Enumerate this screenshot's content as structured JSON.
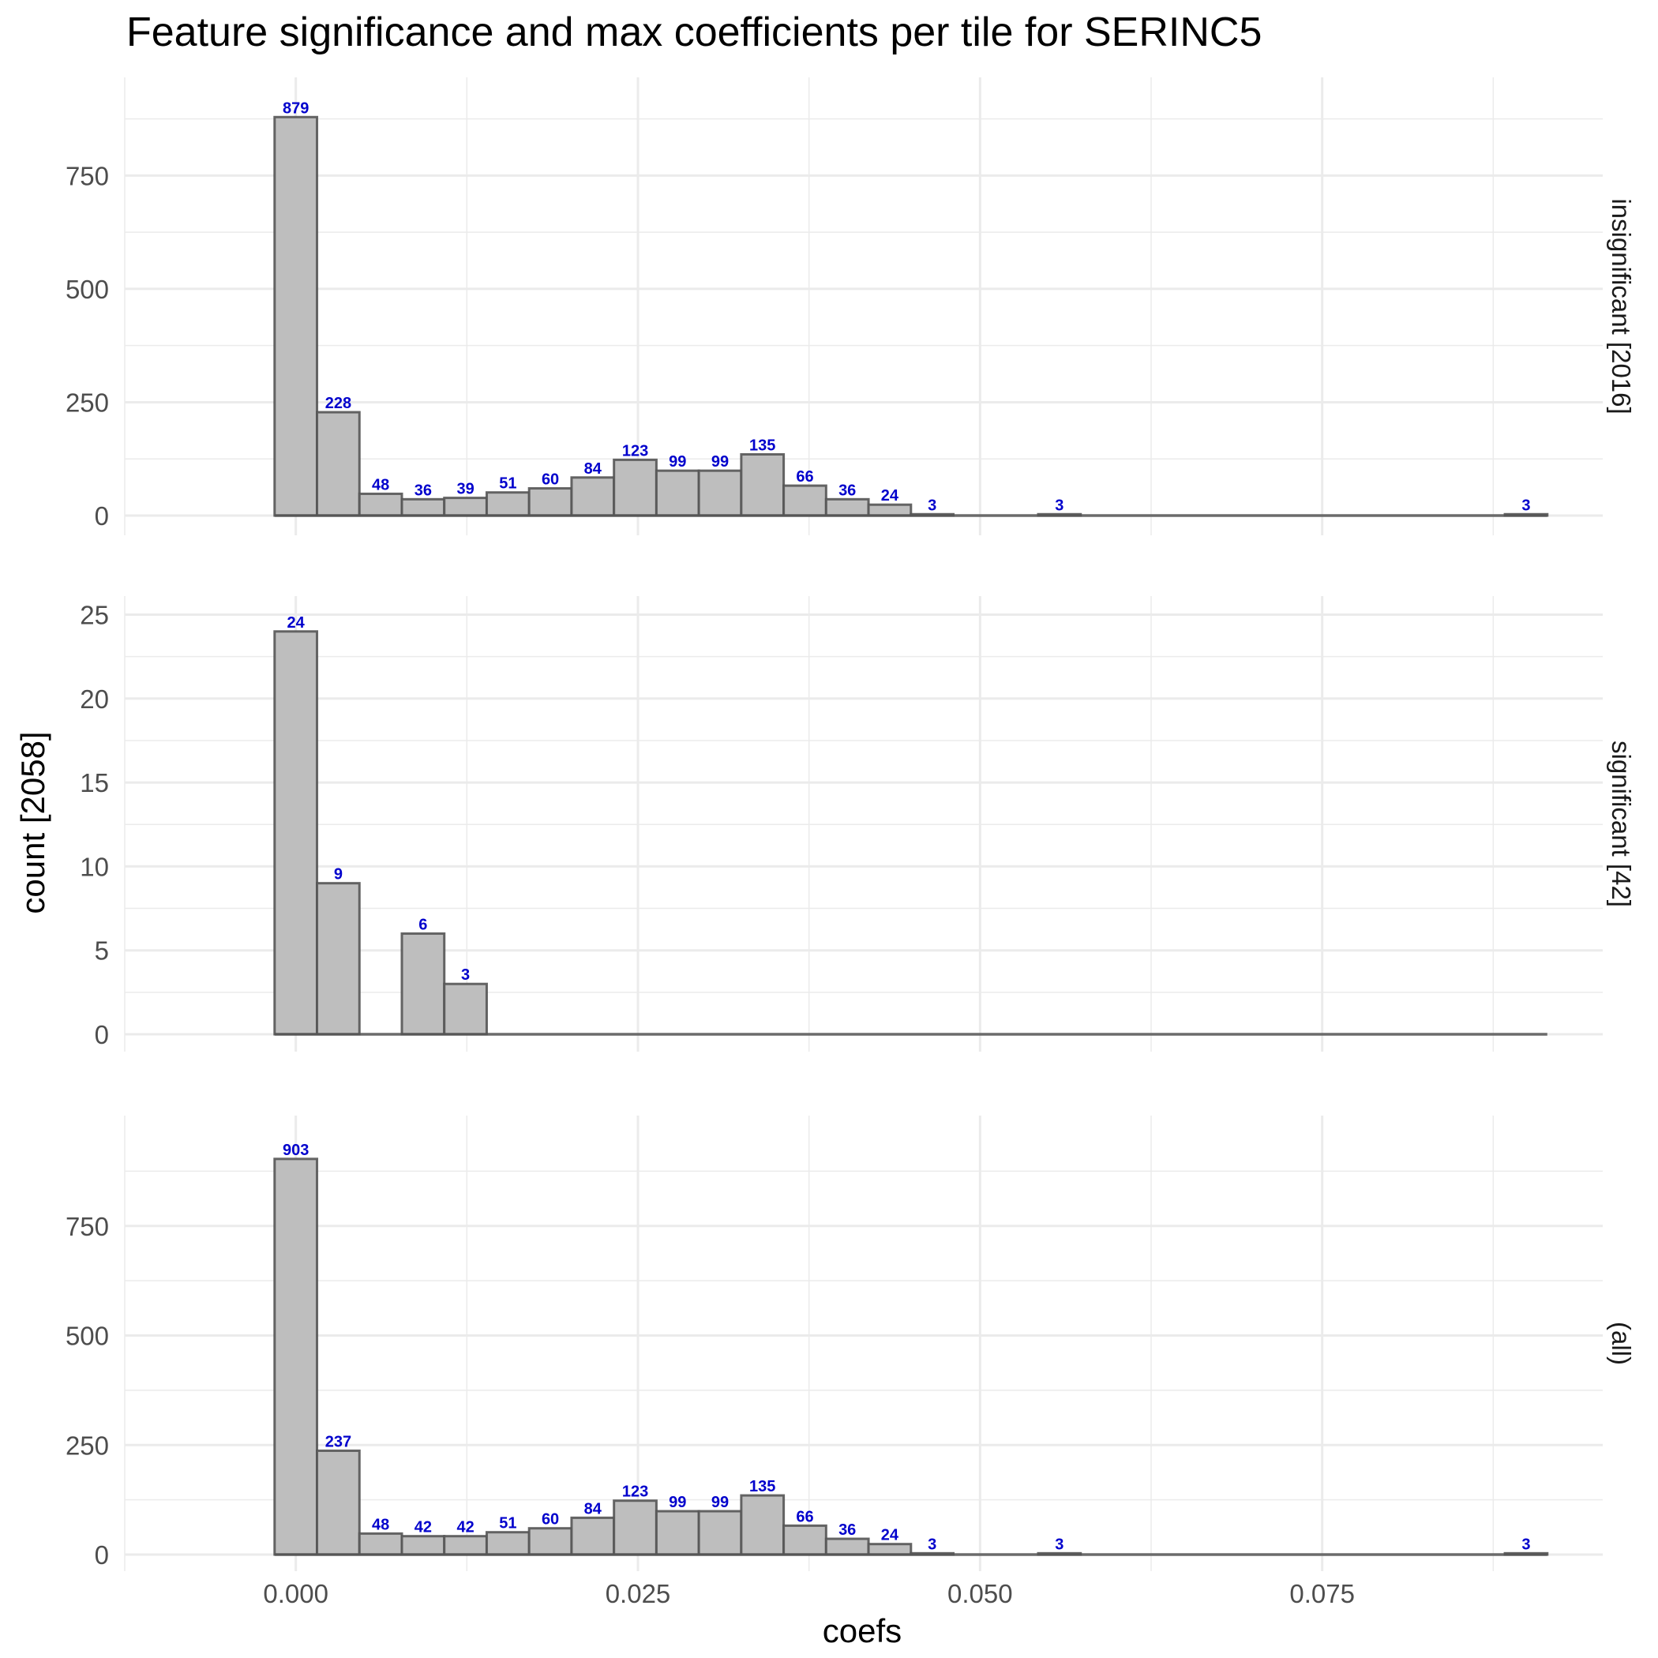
{
  "chart_data": {
    "type": "bar",
    "title": "Feature significance and max coefficients per tile for SERINC5",
    "xlabel": "coefs",
    "ylabel": "count [2058]",
    "x_ticks": [
      0.0,
      0.025,
      0.05,
      0.075
    ],
    "x_tick_labels": [
      "0.000",
      "0.025",
      "0.050",
      "0.075"
    ],
    "xlim": [
      -0.0125,
      0.0955
    ],
    "bin_width": 0.0031,
    "bin_start": -0.00155,
    "n_bins": 30,
    "grid": true,
    "panels": [
      {
        "strip_label": "insignificant [2016]",
        "ylim": [
          0,
          930
        ],
        "y_ticks": [
          0,
          250,
          500,
          750
        ],
        "y_tick_labels": [
          "0",
          "250",
          "500",
          "750"
        ],
        "counts": [
          879,
          228,
          48,
          36,
          39,
          51,
          60,
          84,
          123,
          99,
          99,
          135,
          66,
          36,
          24,
          3,
          0,
          0,
          3,
          0,
          0,
          0,
          0,
          0,
          0,
          0,
          0,
          0,
          0,
          3
        ]
      },
      {
        "strip_label": "significant [42]",
        "ylim": [
          0,
          25.4
        ],
        "y_ticks": [
          0,
          5,
          10,
          15,
          20,
          25
        ],
        "y_tick_labels": [
          "0",
          "5",
          "10",
          "15",
          "20",
          "25"
        ],
        "counts": [
          24,
          9,
          0,
          6,
          3,
          0,
          0,
          0,
          0,
          0,
          0,
          0,
          0,
          0,
          0,
          0,
          0,
          0,
          0,
          0,
          0,
          0,
          0,
          0,
          0,
          0,
          0,
          0,
          0,
          0
        ]
      },
      {
        "strip_label": "(all)",
        "ylim": [
          0,
          955
        ],
        "y_ticks": [
          0,
          250,
          500,
          750
        ],
        "y_tick_labels": [
          "0",
          "250",
          "500",
          "750"
        ],
        "counts": [
          903,
          237,
          48,
          42,
          42,
          51,
          60,
          84,
          123,
          99,
          99,
          135,
          66,
          36,
          24,
          3,
          0,
          0,
          3,
          0,
          0,
          0,
          0,
          0,
          0,
          0,
          0,
          0,
          0,
          3
        ]
      }
    ],
    "colors": {
      "bar_fill": "#bebebe",
      "bar_outline": "#555555",
      "bar_label": "#0000cc",
      "grid": "#ebebeb"
    }
  }
}
